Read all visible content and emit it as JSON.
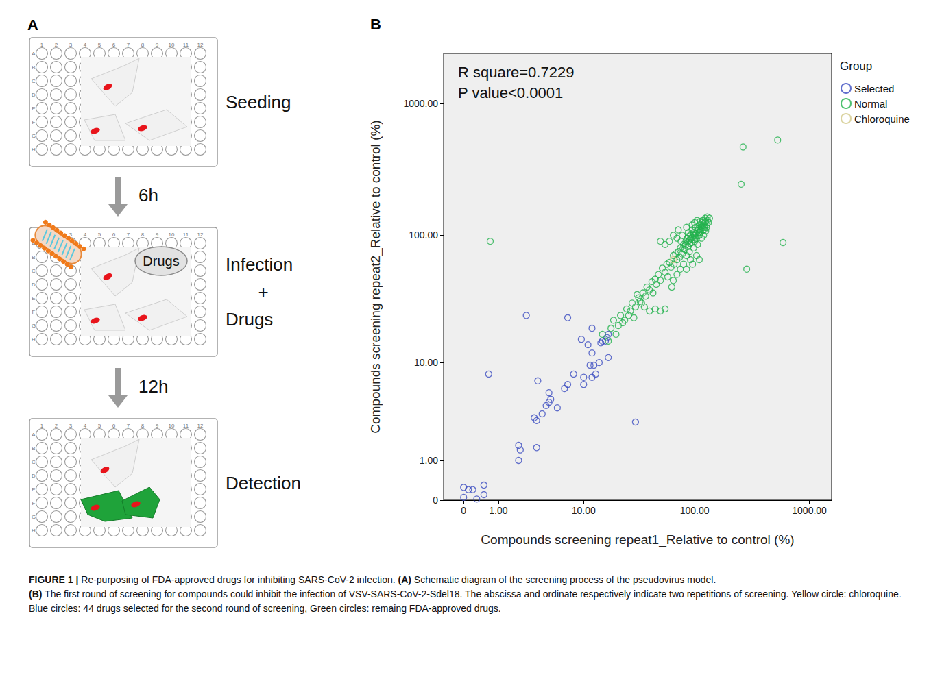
{
  "diagram": {
    "letter": "A",
    "plate_rows": [
      "A",
      "B",
      "C",
      "D",
      "E",
      "F",
      "G",
      "H"
    ],
    "plate_columns": [
      "1",
      "2",
      "3",
      "4",
      "5",
      "6",
      "7",
      "8",
      "9",
      "10",
      "11",
      "12"
    ],
    "steps": [
      {
        "lines": [
          "Seeding"
        ]
      },
      {
        "arrow": "6h",
        "lines": [
          "Infection",
          "+",
          "Drugs"
        ],
        "plate_label": "Drugs"
      },
      {
        "arrow": "12h",
        "lines": [
          "Detection"
        ]
      }
    ]
  },
  "chart_data": {
    "type": "scatter",
    "panel": "B",
    "x_label": "Compounds screening repeat1_Relative to control (%)",
    "y_label": "Compounds screening repeat2_Relative to control (%)",
    "annotations": [
      "R square=0.7229",
      "P value<0.0001"
    ],
    "legend_title": "Group",
    "legend": "right",
    "log": true,
    "grid": false,
    "xlim": [
      -0.33,
      1560
    ],
    "ylim": [
      0,
      2400
    ],
    "xticks": [
      0,
      {
        "value": 1,
        "label": "1.00"
      },
      {
        "value": 10,
        "label": "10.00"
      },
      {
        "value": 100,
        "label": "100.00"
      },
      {
        "value": 1000,
        "label": "1000.00"
      }
    ],
    "yticks": [
      0,
      {
        "value": 1,
        "label": "1.00"
      },
      {
        "value": 10,
        "label": "10.00"
      },
      {
        "value": 100,
        "label": "100.00"
      },
      {
        "value": 1000,
        "label": "1000.00"
      }
    ],
    "series": [
      {
        "name": "Selected",
        "color": "#3b4cc0",
        "marker": "circle-open",
        "values": [
          [
            0,
            0.25
          ],
          [
            0.1,
            0.2
          ],
          [
            0.2,
            0.2
          ],
          [
            0,
            0.05
          ],
          [
            0.5,
            0.3
          ],
          [
            0.5,
            0.1
          ],
          [
            0.3,
            0.02
          ],
          [
            0.65,
            8
          ],
          [
            2.5,
            24
          ],
          [
            7,
            23
          ],
          [
            12,
            19
          ],
          [
            3.4,
            7
          ],
          [
            9.5,
            15.5
          ],
          [
            11,
            14
          ],
          [
            12,
            12
          ],
          [
            11.5,
            9.5
          ],
          [
            12.5,
            9.5
          ],
          [
            14,
            10
          ],
          [
            13,
            8
          ],
          [
            12,
            7.5
          ],
          [
            10,
            7.5
          ],
          [
            10,
            6.5
          ],
          [
            8,
            8
          ],
          [
            6.5,
            6
          ],
          [
            7,
            6.5
          ],
          [
            17,
            11
          ],
          [
            16,
            15
          ],
          [
            16.5,
            16
          ],
          [
            17,
            17
          ],
          [
            15,
            15
          ],
          [
            14.5,
            14.5
          ],
          [
            4.5,
            5.5
          ],
          [
            4.7,
            4.8
          ],
          [
            4.2,
            4.2
          ],
          [
            5.5,
            4
          ],
          [
            3.8,
            3.5
          ],
          [
            3.3,
            3
          ],
          [
            3.1,
            3.2
          ],
          [
            4.5,
            4.5
          ],
          [
            2,
            1.6
          ],
          [
            2.1,
            1.4
          ],
          [
            3.3,
            1.5
          ],
          [
            2,
            1
          ],
          [
            30,
            2.9
          ]
        ]
      },
      {
        "name": "Normal",
        "color": "#22b14c",
        "marker": "circle-open",
        "values": [
          [
            0.7,
            90
          ],
          [
            265,
            470
          ],
          [
            530,
            530
          ],
          [
            255,
            245
          ],
          [
            590,
            88
          ],
          [
            285,
            55
          ],
          [
            19,
            22
          ],
          [
            20,
            17
          ],
          [
            21,
            20
          ],
          [
            22,
            24
          ],
          [
            24,
            22
          ],
          [
            25,
            27
          ],
          [
            27,
            26
          ],
          [
            28,
            30
          ],
          [
            30,
            28
          ],
          [
            32,
            33
          ],
          [
            33,
            31
          ],
          [
            35,
            36
          ],
          [
            37,
            34
          ],
          [
            36,
            28
          ],
          [
            38,
            40
          ],
          [
            40,
            38
          ],
          [
            42,
            44
          ],
          [
            43,
            36
          ],
          [
            45,
            46
          ],
          [
            46,
            42
          ],
          [
            48,
            50
          ],
          [
            50,
            45
          ],
          [
            50,
            26
          ],
          [
            45,
            27
          ],
          [
            40,
            26
          ],
          [
            55,
            27
          ],
          [
            52,
            56
          ],
          [
            55,
            52
          ],
          [
            57,
            60
          ],
          [
            58,
            48
          ],
          [
            60,
            62
          ],
          [
            62,
            57
          ],
          [
            63,
            40
          ],
          [
            65,
            70
          ],
          [
            66,
            60
          ],
          [
            68,
            72
          ],
          [
            70,
            65
          ],
          [
            70,
            95
          ],
          [
            72,
            75
          ],
          [
            74,
            68
          ],
          [
            75,
            80
          ],
          [
            76,
            90
          ],
          [
            78,
            72
          ],
          [
            78,
            100
          ],
          [
            80,
            85
          ],
          [
            80,
            60
          ],
          [
            82,
            78
          ],
          [
            84,
            90
          ],
          [
            85,
            70
          ],
          [
            86,
            95
          ],
          [
            88,
            82
          ],
          [
            88,
            105
          ],
          [
            90,
            92
          ],
          [
            90,
            75
          ],
          [
            92,
            100
          ],
          [
            94,
            88
          ],
          [
            95,
            110
          ],
          [
            96,
            96
          ],
          [
            98,
            80
          ],
          [
            98,
            105
          ],
          [
            100,
            100
          ],
          [
            100,
            90
          ],
          [
            102,
            115
          ],
          [
            104,
            95
          ],
          [
            105,
            108
          ],
          [
            106,
            85
          ],
          [
            108,
            112
          ],
          [
            110,
            100
          ],
          [
            110,
            120
          ],
          [
            112,
            105
          ],
          [
            114,
            118
          ],
          [
            115,
            95
          ],
          [
            116,
            125
          ],
          [
            118,
            110
          ],
          [
            120,
            122
          ],
          [
            120,
            100
          ],
          [
            122,
            115
          ],
          [
            125,
            128
          ],
          [
            125,
            108
          ],
          [
            128,
            120
          ],
          [
            130,
            130
          ],
          [
            132,
            125
          ],
          [
            135,
            135
          ],
          [
            96,
            60
          ],
          [
            85,
            55
          ],
          [
            75,
            55
          ],
          [
            70,
            50
          ],
          [
            65,
            45
          ],
          [
            92,
            65
          ],
          [
            104,
            70
          ],
          [
            110,
            65
          ],
          [
            60,
            90
          ],
          [
            55,
            85
          ],
          [
            50,
            90
          ],
          [
            65,
            100
          ],
          [
            72,
            110
          ],
          [
            85,
            115
          ],
          [
            95,
            120
          ],
          [
            100,
            125
          ],
          [
            105,
            130
          ],
          [
            88,
            98
          ],
          [
            93,
            94
          ],
          [
            97,
            102
          ],
          [
            101,
            97
          ],
          [
            103,
            103
          ],
          [
            107,
            99
          ],
          [
            99,
            93
          ],
          [
            91,
            87
          ],
          [
            83,
            84
          ],
          [
            79,
            79
          ],
          [
            87,
            89
          ],
          [
            109,
            106
          ],
          [
            111,
            111
          ],
          [
            113,
            108
          ],
          [
            117,
            115
          ],
          [
            119,
            119
          ],
          [
            121,
            110
          ],
          [
            123,
            125
          ],
          [
            127,
            115
          ],
          [
            118,
            130
          ],
          [
            112,
            128
          ],
          [
            124,
            135
          ],
          [
            129,
            138
          ],
          [
            15,
            17
          ],
          [
            17,
            15
          ],
          [
            18,
            19
          ],
          [
            23,
            21
          ],
          [
            26,
            24
          ],
          [
            29,
            23
          ],
          [
            31,
            35
          ],
          [
            34,
            30
          ]
        ]
      },
      {
        "name": "Chloroquine",
        "color": "#d2c98a",
        "marker": "circle-open",
        "values": [
          [
            65,
            65
          ]
        ]
      }
    ]
  },
  "caption": {
    "label": "FIGURE 1 |",
    "title": "Re-purposing of FDA-approved drugs for inhibiting SARS-CoV-2 infection.",
    "panels": [
      {
        "letter": "(A)",
        "text": "Schematic diagram of the screening process of the pseudovirus model."
      },
      {
        "letter": "(B)",
        "text": "The first round of screening for compounds could inhibit the infection of VSV-SARS-CoV-2-Sdel18. The abscissa and ordinate respectively indicate two repetitions of screening. Yellow circle: chloroquine. Blue circles: 44 drugs selected for the second round of screening, Green circles: remaing FDA-approved drugs."
      }
    ]
  }
}
